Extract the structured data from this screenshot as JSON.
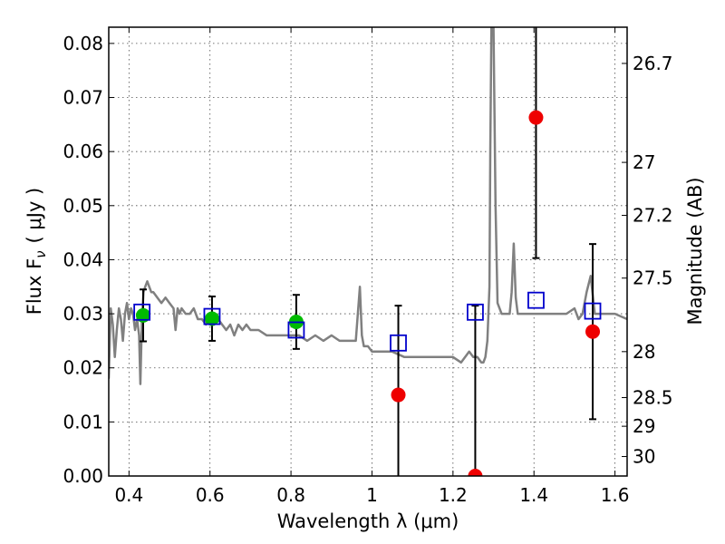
{
  "chart_data": {
    "type": "scatter",
    "xlabel": "Wavelength  λ (μm)",
    "ylabel": "Flux  F",
    "ylabel_sub": "ν",
    "ylabel_unit": "( μJy )",
    "y2label": "Magnitude (AB)",
    "xlim": [
      0.35,
      1.63
    ],
    "ylim": [
      0.0,
      0.083
    ],
    "grid": true,
    "x_ticks": [
      {
        "value": 0.4,
        "label": "0.4"
      },
      {
        "value": 0.6,
        "label": "0.6"
      },
      {
        "value": 0.8,
        "label": "0.8"
      },
      {
        "value": 1.0,
        "label": "1"
      },
      {
        "value": 1.2,
        "label": "1.2"
      },
      {
        "value": 1.4,
        "label": "1.4"
      },
      {
        "value": 1.6,
        "label": "1.6"
      }
    ],
    "y_ticks": [
      {
        "value": 0.0,
        "label": "0.00"
      },
      {
        "value": 0.01,
        "label": "0.01"
      },
      {
        "value": 0.02,
        "label": "0.02"
      },
      {
        "value": 0.03,
        "label": "0.03"
      },
      {
        "value": 0.04,
        "label": "0.04"
      },
      {
        "value": 0.05,
        "label": "0.05"
      },
      {
        "value": 0.06,
        "label": "0.06"
      },
      {
        "value": 0.07,
        "label": "0.07"
      },
      {
        "value": 0.08,
        "label": "0.08"
      }
    ],
    "magnitude_ticks": [
      {
        "flux": 0.0763,
        "label": "26.7"
      },
      {
        "flux": 0.058,
        "label": "27"
      },
      {
        "flux": 0.0482,
        "label": "27.2"
      },
      {
        "flux": 0.0366,
        "label": "27.5"
      },
      {
        "flux": 0.023,
        "label": "28"
      },
      {
        "flux": 0.0145,
        "label": "28.5"
      },
      {
        "flux": 0.0092,
        "label": "29"
      },
      {
        "flux": 0.0036,
        "label": "30"
      }
    ],
    "colors": {
      "model": "#808080",
      "detected": "#00bb00",
      "measured": "#ee0000",
      "model_box": "#0000cc",
      "errorbar": "#000000"
    },
    "model_spectrum": {
      "x": [
        0.35,
        0.355,
        0.36,
        0.365,
        0.37,
        0.375,
        0.38,
        0.385,
        0.39,
        0.395,
        0.4,
        0.405,
        0.41,
        0.415,
        0.42,
        0.425,
        0.428,
        0.432,
        0.436,
        0.44,
        0.445,
        0.45,
        0.455,
        0.46,
        0.47,
        0.48,
        0.49,
        0.5,
        0.51,
        0.515,
        0.52,
        0.525,
        0.53,
        0.54,
        0.55,
        0.56,
        0.57,
        0.58,
        0.59,
        0.6,
        0.61,
        0.62,
        0.63,
        0.64,
        0.65,
        0.66,
        0.67,
        0.68,
        0.69,
        0.7,
        0.72,
        0.74,
        0.76,
        0.78,
        0.8,
        0.82,
        0.84,
        0.86,
        0.88,
        0.9,
        0.92,
        0.94,
        0.96,
        0.97,
        0.975,
        0.98,
        0.99,
        1.0,
        1.02,
        1.05,
        1.08,
        1.1,
        1.15,
        1.2,
        1.22,
        1.24,
        1.25,
        1.26,
        1.27,
        1.275,
        1.28,
        1.285,
        1.29,
        1.292,
        1.295,
        1.3,
        1.305,
        1.31,
        1.32,
        1.33,
        1.34,
        1.345,
        1.35,
        1.355,
        1.36,
        1.38,
        1.4,
        1.42,
        1.45,
        1.48,
        1.5,
        1.51,
        1.52,
        1.53,
        1.54,
        1.55,
        1.57,
        1.6,
        1.63
      ],
      "y": [
        0.018,
        0.031,
        0.028,
        0.022,
        0.027,
        0.031,
        0.029,
        0.025,
        0.03,
        0.032,
        0.029,
        0.031,
        0.03,
        0.027,
        0.029,
        0.026,
        0.017,
        0.029,
        0.034,
        0.035,
        0.036,
        0.035,
        0.034,
        0.034,
        0.033,
        0.032,
        0.033,
        0.032,
        0.031,
        0.027,
        0.031,
        0.03,
        0.031,
        0.03,
        0.03,
        0.031,
        0.029,
        0.029,
        0.028,
        0.029,
        0.028,
        0.029,
        0.028,
        0.027,
        0.028,
        0.026,
        0.028,
        0.027,
        0.028,
        0.027,
        0.027,
        0.026,
        0.026,
        0.026,
        0.026,
        0.026,
        0.025,
        0.026,
        0.025,
        0.026,
        0.025,
        0.025,
        0.025,
        0.035,
        0.026,
        0.024,
        0.024,
        0.023,
        0.023,
        0.023,
        0.022,
        0.022,
        0.022,
        0.022,
        0.021,
        0.023,
        0.022,
        0.022,
        0.021,
        0.021,
        0.022,
        0.025,
        0.035,
        0.06,
        0.084,
        0.084,
        0.05,
        0.032,
        0.03,
        0.03,
        0.03,
        0.034,
        0.043,
        0.033,
        0.03,
        0.03,
        0.03,
        0.03,
        0.03,
        0.03,
        0.031,
        0.029,
        0.03,
        0.034,
        0.037,
        0.03,
        0.03,
        0.03,
        0.029
      ]
    },
    "series": [
      {
        "name": "",
        "x": [
          0.435,
          0.605,
          0.813
        ],
        "y": [
          0.0297,
          0.0291,
          0.0285
        ],
        "err": [
          0.0048,
          0.0041,
          0.005
        ],
        "marker": "circle",
        "color_key": "detected"
      },
      {
        "name": "",
        "x": [
          1.065,
          1.255,
          1.405,
          1.545
        ],
        "y": [
          0.015,
          0.0,
          0.0663,
          0.0267
        ],
        "err": [
          0.0165,
          0.0315,
          0.026,
          0.0162
        ],
        "marker": "circle",
        "color_key": "measured"
      },
      {
        "name": "",
        "x": [
          0.432,
          0.605,
          0.813,
          1.065,
          1.255,
          1.405,
          1.545
        ],
        "y": [
          0.0303,
          0.0295,
          0.027,
          0.0246,
          0.0303,
          0.0325,
          0.0305
        ],
        "marker": "open-square",
        "color_key": "model_box"
      }
    ]
  }
}
